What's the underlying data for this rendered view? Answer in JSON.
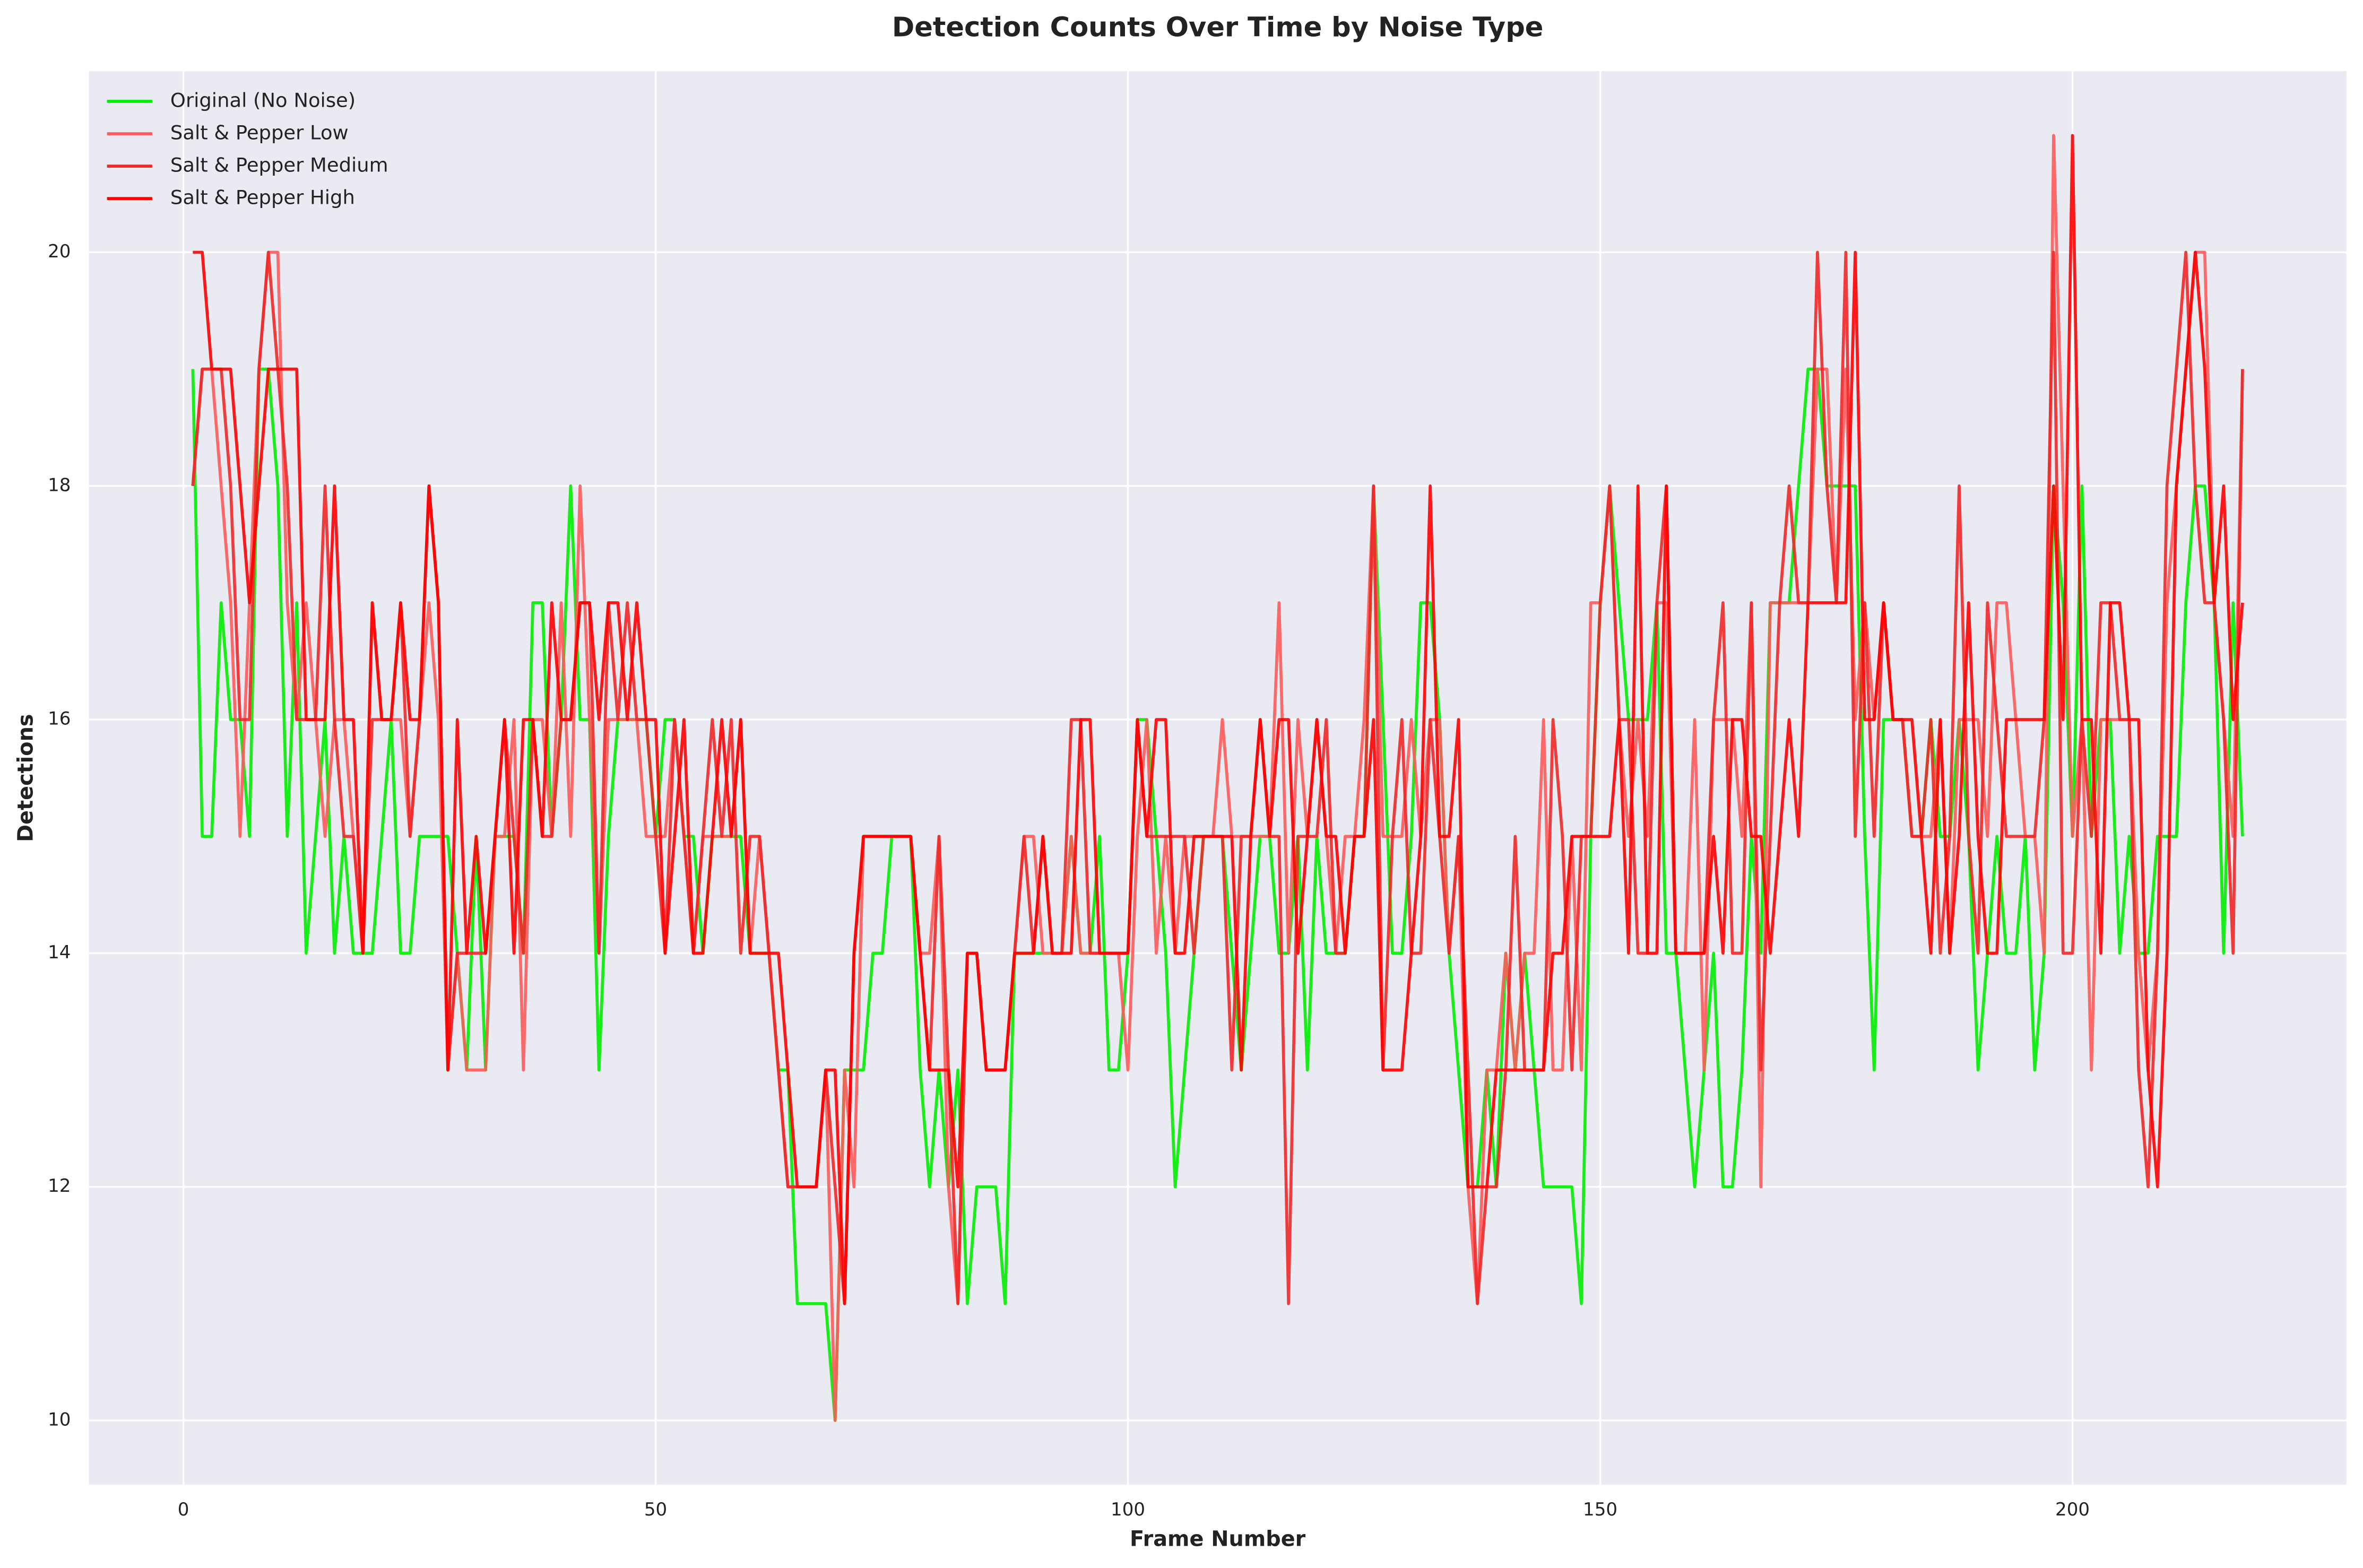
{
  "chart_data": {
    "type": "line",
    "title": "Detection Counts Over Time by Noise Type",
    "xlabel": "Frame Number",
    "ylabel": "Detections",
    "x": [
      1,
      2,
      3,
      4,
      5,
      6,
      7,
      8,
      9,
      10,
      11,
      12,
      13,
      14,
      15,
      16,
      17,
      18,
      19,
      20,
      21,
      22,
      23,
      24,
      25,
      26,
      27,
      28,
      29,
      30,
      31,
      32,
      33,
      34,
      35,
      36,
      37,
      38,
      39,
      40,
      41,
      42,
      43,
      44,
      45,
      46,
      47,
      48,
      49,
      50,
      51,
      52,
      53,
      54,
      55,
      56,
      57,
      58,
      59,
      60,
      61,
      62,
      63,
      64,
      65,
      66,
      67,
      68,
      69,
      70,
      71,
      72,
      73,
      74,
      75,
      76,
      77,
      78,
      79,
      80,
      81,
      82,
      83,
      84,
      85,
      86,
      87,
      88,
      89,
      90,
      91,
      92,
      93,
      94,
      95,
      96,
      97,
      98,
      99,
      100,
      101,
      102,
      103,
      104,
      105,
      106,
      107,
      108,
      109,
      110,
      111,
      112,
      113,
      114,
      115,
      116,
      117,
      118,
      119,
      120,
      121,
      122,
      123,
      124,
      125,
      126,
      127,
      128,
      129,
      130,
      131,
      132,
      133,
      134,
      135,
      136,
      137,
      138,
      139,
      140,
      141,
      142,
      143,
      144,
      145,
      146,
      147,
      148,
      149,
      150,
      151,
      152,
      153,
      154,
      155,
      156,
      157,
      158,
      159,
      160,
      161,
      162,
      163,
      164,
      165,
      166,
      167,
      168,
      169,
      170,
      171,
      172,
      173,
      174,
      175,
      176,
      177,
      178,
      179,
      180,
      181,
      182,
      183,
      184,
      185,
      186,
      187,
      188,
      189,
      190,
      191,
      192,
      193,
      194,
      195,
      196,
      197,
      198,
      199,
      200,
      201,
      202,
      203,
      204,
      205,
      206,
      207,
      208,
      209,
      210,
      211,
      212,
      213,
      214,
      215,
      216,
      217,
      218
    ],
    "series": [
      {
        "name": "Original (No Noise)",
        "color": "#00ee00",
        "values": [
          19,
          15,
          15,
          17,
          16,
          16,
          15,
          19,
          19,
          18,
          15,
          17,
          14,
          15,
          16,
          14,
          15,
          14,
          14,
          14,
          15,
          16,
          14,
          14,
          15,
          15,
          15,
          15,
          14,
          13,
          15,
          13,
          15,
          15,
          15,
          14,
          17,
          17,
          15,
          16,
          18,
          16,
          16,
          13,
          15,
          16,
          16,
          16,
          16,
          15,
          16,
          16,
          15,
          15,
          14,
          15,
          15,
          15,
          15,
          14,
          14,
          14,
          13,
          13,
          11,
          11,
          11,
          11,
          10,
          13,
          13,
          13,
          14,
          14,
          15,
          15,
          15,
          13,
          12,
          13,
          12,
          13,
          11,
          12,
          12,
          12,
          11,
          14,
          14,
          14,
          14,
          14,
          14,
          15,
          14,
          14,
          15,
          13,
          13,
          14,
          16,
          16,
          15,
          14,
          12,
          13,
          14,
          15,
          15,
          15,
          14,
          13,
          14,
          15,
          15,
          14,
          14,
          15,
          13,
          15,
          14,
          14,
          14,
          15,
          15,
          18,
          16,
          14,
          14,
          15,
          17,
          17,
          16,
          14,
          13,
          12,
          12,
          13,
          12,
          14,
          13,
          14,
          13,
          12,
          12,
          12,
          12,
          11,
          15,
          17,
          18,
          17,
          16,
          16,
          16,
          17,
          14,
          14,
          13,
          12,
          13,
          14,
          12,
          12,
          13,
          15,
          14,
          17,
          17,
          17,
          18,
          19,
          19,
          18,
          18,
          18,
          18,
          15,
          13,
          16,
          16,
          16,
          15,
          15,
          16,
          15,
          15,
          16,
          15,
          13,
          14,
          15,
          14,
          14,
          15,
          13,
          14,
          18,
          17,
          15,
          18,
          15,
          16,
          16,
          14,
          15,
          14,
          14,
          15,
          15,
          15,
          17,
          18,
          18,
          17,
          14,
          17,
          15
        ]
      },
      {
        "name": "Salt & Pepper Low",
        "color": "#ff5a5a",
        "values": [
          18,
          19,
          19,
          18,
          17,
          15,
          17,
          19,
          20,
          20,
          17,
          16,
          17,
          16,
          15,
          16,
          16,
          15,
          14,
          17,
          16,
          16,
          16,
          15,
          16,
          17,
          16,
          13,
          14,
          13,
          13,
          13,
          15,
          15,
          16,
          13,
          16,
          16,
          15,
          17,
          15,
          18,
          16,
          14,
          16,
          16,
          16,
          16,
          15,
          15,
          15,
          16,
          15,
          14,
          15,
          15,
          15,
          15,
          16,
          14,
          15,
          14,
          13,
          12,
          12,
          12,
          12,
          13,
          10,
          13,
          12,
          15,
          15,
          15,
          15,
          15,
          15,
          14,
          14,
          15,
          12,
          11,
          14,
          14,
          13,
          13,
          13,
          14,
          15,
          15,
          14,
          14,
          14,
          15,
          14,
          14,
          14,
          14,
          14,
          13,
          15,
          16,
          14,
          15,
          14,
          15,
          15,
          15,
          15,
          16,
          15,
          15,
          15,
          15,
          15,
          17,
          14,
          16,
          15,
          16,
          15,
          14,
          15,
          15,
          16,
          18,
          15,
          15,
          15,
          16,
          15,
          16,
          16,
          14,
          15,
          12,
          11,
          13,
          13,
          14,
          13,
          14,
          14,
          16,
          13,
          13,
          15,
          13,
          17,
          17,
          18,
          16,
          15,
          16,
          15,
          17,
          17,
          14,
          14,
          16,
          13,
          16,
          16,
          16,
          15,
          17,
          12,
          17,
          17,
          17,
          17,
          17,
          19,
          19,
          17,
          19,
          16,
          17,
          16,
          17,
          16,
          16,
          15,
          15,
          15,
          16,
          14,
          16,
          16,
          16,
          15,
          17,
          17,
          16,
          15,
          15,
          14,
          21,
          18,
          15,
          16,
          13,
          16,
          16,
          16,
          16,
          14,
          13,
          14,
          17,
          18,
          19,
          20,
          20,
          17,
          16,
          15,
          19
        ]
      },
      {
        "name": "Salt & Pepper Medium",
        "color": "#f02828",
        "values": [
          18,
          19,
          19,
          19,
          18,
          16,
          16,
          19,
          20,
          19,
          18,
          16,
          16,
          16,
          18,
          16,
          15,
          15,
          14,
          16,
          16,
          16,
          17,
          15,
          16,
          18,
          17,
          13,
          14,
          14,
          14,
          14,
          15,
          16,
          15,
          14,
          16,
          15,
          15,
          16,
          16,
          17,
          17,
          14,
          17,
          16,
          17,
          16,
          16,
          15,
          14,
          16,
          15,
          14,
          15,
          16,
          15,
          16,
          14,
          15,
          15,
          14,
          13,
          12,
          12,
          12,
          12,
          13,
          12,
          11,
          14,
          15,
          15,
          15,
          15,
          15,
          15,
          14,
          13,
          15,
          13,
          11,
          14,
          14,
          13,
          13,
          13,
          14,
          15,
          14,
          15,
          14,
          14,
          16,
          16,
          14,
          14,
          14,
          14,
          14,
          16,
          15,
          15,
          15,
          15,
          15,
          14,
          15,
          15,
          15,
          13,
          15,
          15,
          16,
          15,
          15,
          11,
          15,
          15,
          15,
          16,
          14,
          14,
          15,
          15,
          18,
          13,
          15,
          16,
          14,
          14,
          16,
          15,
          14,
          15,
          13,
          11,
          12,
          12,
          13,
          15,
          13,
          13,
          13,
          16,
          15,
          13,
          15,
          15,
          17,
          18,
          16,
          16,
          14,
          14,
          17,
          18,
          14,
          14,
          14,
          14,
          16,
          17,
          14,
          14,
          17,
          13,
          15,
          17,
          18,
          17,
          17,
          20,
          18,
          17,
          20,
          15,
          17,
          15,
          17,
          16,
          16,
          15,
          15,
          16,
          14,
          15,
          18,
          15,
          14,
          17,
          16,
          15,
          15,
          15,
          15,
          16,
          20,
          14,
          14,
          16,
          15,
          17,
          17,
          16,
          16,
          13,
          12,
          14,
          18,
          19,
          20,
          18,
          17,
          17,
          16,
          14,
          19
        ]
      },
      {
        "name": "Salt & Pepper High",
        "color": "#ff0000",
        "values": [
          20,
          20,
          19,
          19,
          19,
          18,
          17,
          18,
          19,
          19,
          19,
          19,
          16,
          16,
          16,
          18,
          16,
          16,
          14,
          17,
          16,
          16,
          17,
          16,
          16,
          18,
          17,
          13,
          16,
          14,
          15,
          14,
          15,
          16,
          14,
          16,
          16,
          15,
          17,
          16,
          16,
          17,
          17,
          16,
          17,
          17,
          16,
          17,
          16,
          16,
          14,
          15,
          16,
          14,
          14,
          15,
          16,
          15,
          16,
          14,
          14,
          14,
          14,
          13,
          12,
          12,
          12,
          13,
          13,
          11,
          14,
          15,
          15,
          15,
          15,
          15,
          15,
          14,
          13,
          13,
          13,
          12,
          14,
          14,
          13,
          13,
          13,
          14,
          14,
          14,
          15,
          14,
          14,
          14,
          16,
          16,
          14,
          14,
          14,
          14,
          16,
          15,
          16,
          16,
          14,
          14,
          15,
          15,
          15,
          15,
          15,
          13,
          15,
          16,
          15,
          16,
          16,
          14,
          15,
          16,
          15,
          15,
          14,
          15,
          15,
          16,
          13,
          13,
          13,
          14,
          15,
          18,
          15,
          15,
          16,
          12,
          12,
          12,
          13,
          13,
          13,
          13,
          13,
          13,
          14,
          14,
          15,
          15,
          15,
          15,
          15,
          16,
          14,
          18,
          14,
          14,
          18,
          14,
          14,
          14,
          14,
          15,
          14,
          16,
          16,
          15,
          15,
          14,
          15,
          16,
          15,
          17,
          17,
          17,
          17,
          17,
          20,
          16,
          16,
          17,
          16,
          16,
          16,
          15,
          14,
          16,
          14,
          15,
          17,
          15,
          14,
          14,
          16,
          16,
          16,
          16,
          16,
          18,
          16,
          21,
          16,
          16,
          14,
          17,
          17,
          16,
          16,
          13,
          12,
          14,
          18,
          19,
          20,
          19,
          17,
          18,
          16,
          17
        ]
      }
    ],
    "xlim": [
      -10,
      229
    ],
    "ylim": [
      9.45,
      21.55
    ],
    "xticks": [
      0,
      50,
      100,
      150,
      200
    ],
    "yticks": [
      10,
      12,
      14,
      16,
      18,
      20
    ],
    "grid": true,
    "legend": "upper left"
  }
}
